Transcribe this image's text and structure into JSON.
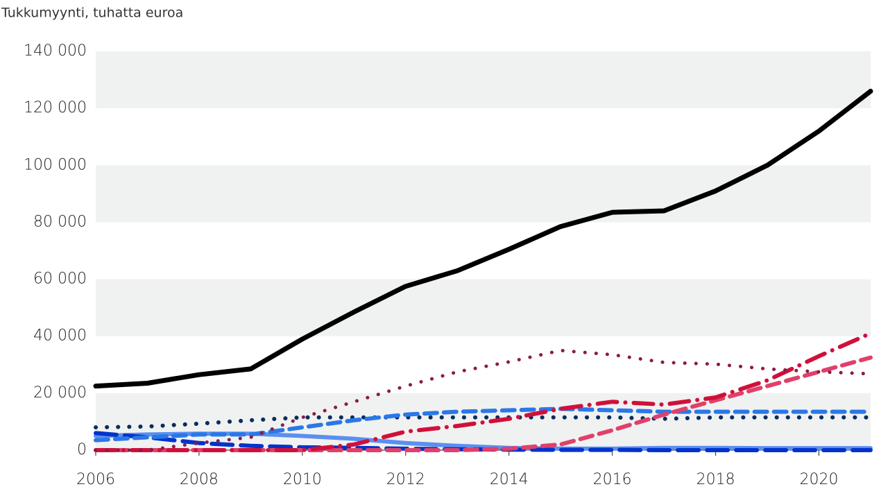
{
  "chart_data": {
    "type": "line",
    "title": "Tukkumyynti, tuhatta euroa",
    "x": [
      2006,
      2007,
      2008,
      2009,
      2010,
      2011,
      2012,
      2013,
      2014,
      2015,
      2016,
      2017,
      2018,
      2019,
      2020,
      2021
    ],
    "xlim": [
      2006,
      2021
    ],
    "xticks": [
      2006,
      2008,
      2010,
      2012,
      2014,
      2016,
      2018,
      2020
    ],
    "ylim": [
      0,
      140000
    ],
    "yticks": [
      0,
      {
        "value": 20000,
        "label": "20 000"
      },
      {
        "value": 40000,
        "label": "40 000"
      },
      {
        "value": 60000,
        "label": "60 000"
      },
      {
        "value": 80000,
        "label": "80 000"
      },
      {
        "value": 100000,
        "label": "100 000"
      },
      {
        "value": 120000,
        "label": "120 000"
      },
      {
        "value": 140000,
        "label": "140 000"
      }
    ],
    "grid": "bands",
    "series": [
      {
        "color": "#5b8ff0",
        "dash": "solid",
        "width": 6,
        "values": [
          5000,
          5500,
          5800,
          5800,
          5000,
          4000,
          2500,
          1500,
          800,
          500,
          500,
          800,
          800,
          700,
          700,
          700
        ]
      },
      {
        "color": "#0033cc",
        "dash": "longdash",
        "width": 6,
        "values": [
          6000,
          4500,
          2500,
          1500,
          1000,
          800,
          500,
          300,
          200,
          100,
          100,
          0,
          0,
          0,
          0,
          0
        ]
      },
      {
        "color": "#0a2d5e",
        "dash": "dotted",
        "width": 6,
        "values": [
          8000,
          8300,
          9300,
          10500,
          11500,
          11500,
          11500,
          11500,
          11500,
          11500,
          11500,
          11000,
          11500,
          11500,
          11500,
          11500
        ]
      },
      {
        "color": "#2a78e8",
        "dash": "dashed",
        "width": 6,
        "values": [
          3500,
          4500,
          5500,
          5500,
          8000,
          10500,
          12500,
          13500,
          14000,
          14500,
          14000,
          13500,
          13500,
          13500,
          13500,
          13500
        ]
      },
      {
        "color": "#e0406a",
        "dash": "dashed",
        "width": 6,
        "values": [
          0,
          0,
          0,
          0,
          0,
          0,
          0,
          0,
          500,
          2000,
          7000,
          12500,
          17500,
          22500,
          27500,
          32500
        ]
      },
      {
        "color": "#d0103a",
        "dash": "dashdot",
        "width": 6,
        "values": [
          0,
          0,
          0,
          0,
          0,
          2000,
          6500,
          8500,
          11000,
          14500,
          17000,
          16000,
          18500,
          24500,
          33000,
          41000
        ]
      },
      {
        "color": "#8b1a4a",
        "dash": "dotted",
        "width": 5,
        "values": [
          0,
          0,
          2500,
          4500,
          11500,
          17000,
          22500,
          27500,
          31000,
          35000,
          33500,
          30800,
          30200,
          28500,
          27500,
          26800
        ]
      },
      {
        "color": "#000000",
        "dash": "solid",
        "width": 7,
        "values": [
          22500,
          23500,
          26500,
          28500,
          39000,
          48500,
          57500,
          63000,
          70500,
          78500,
          83500,
          84000,
          91000,
          100000,
          112000,
          126000
        ]
      }
    ]
  }
}
